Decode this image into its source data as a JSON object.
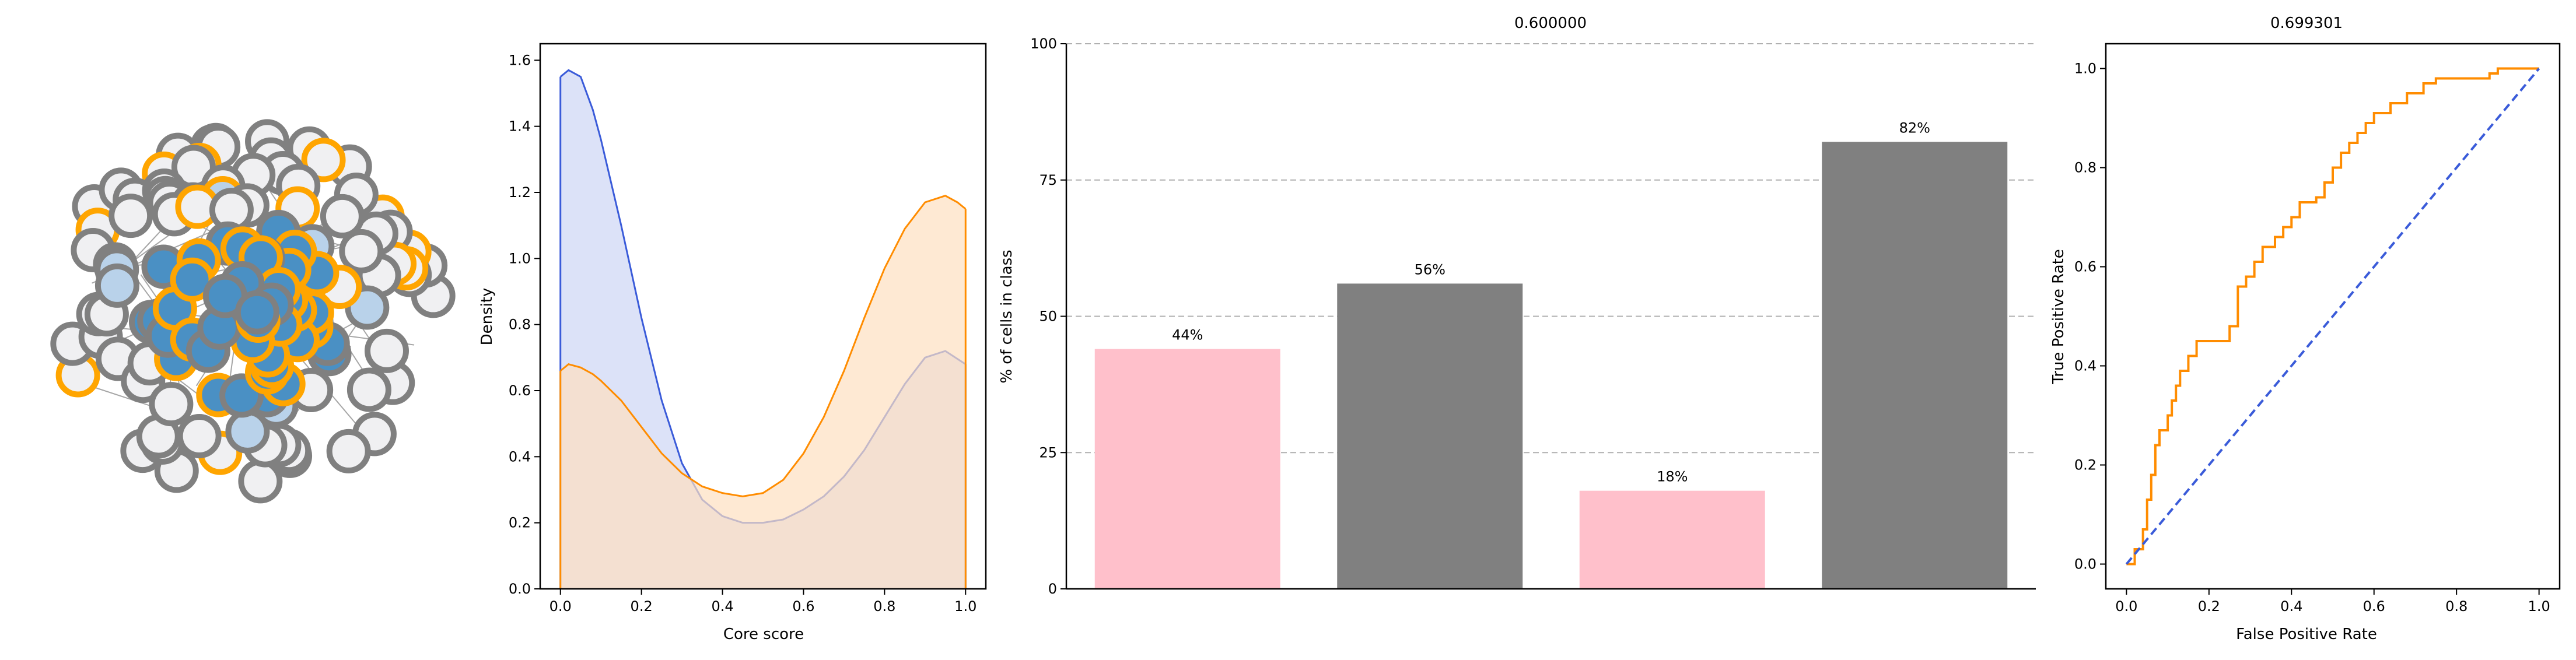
{
  "chart_data": [
    {
      "type": "network",
      "colors": {
        "core": "#4a90c4",
        "core_light": "#b9d2ea",
        "periphery": "#f0f0f2",
        "core_ring": "#ffa500",
        "ring": "#808080",
        "edge": "#a6a6a6"
      }
    },
    {
      "type": "area",
      "title": "",
      "xlabel": "Core score",
      "ylabel": "Density",
      "xlim": [
        -0.05,
        1.05
      ],
      "ylim": [
        0,
        1.65
      ],
      "xticks": [
        "0.0",
        "0.2",
        "0.4",
        "0.6",
        "0.8",
        "1.0"
      ],
      "yticks": [
        "0.0",
        "0.2",
        "0.4",
        "0.6",
        "0.8",
        "1.0",
        "1.2",
        "1.4",
        "1.6"
      ],
      "series": [
        {
          "color": "#3a5bd9",
          "fill": "#cdd6f5",
          "x": [
            0.0,
            0.02,
            0.05,
            0.08,
            0.1,
            0.15,
            0.2,
            0.25,
            0.3,
            0.35,
            0.4,
            0.45,
            0.5,
            0.55,
            0.6,
            0.65,
            0.7,
            0.75,
            0.8,
            0.85,
            0.9,
            0.95,
            1.0
          ],
          "y": [
            1.55,
            1.57,
            1.55,
            1.45,
            1.36,
            1.1,
            0.82,
            0.57,
            0.38,
            0.27,
            0.22,
            0.2,
            0.2,
            0.21,
            0.24,
            0.28,
            0.34,
            0.42,
            0.52,
            0.62,
            0.7,
            0.72,
            0.68
          ]
        },
        {
          "color": "#ff8c00",
          "fill": "#fde0c0",
          "x": [
            0.0,
            0.02,
            0.05,
            0.08,
            0.1,
            0.15,
            0.2,
            0.25,
            0.3,
            0.35,
            0.4,
            0.45,
            0.5,
            0.55,
            0.6,
            0.65,
            0.7,
            0.75,
            0.8,
            0.85,
            0.9,
            0.95,
            0.98,
            1.0
          ],
          "y": [
            0.66,
            0.68,
            0.67,
            0.65,
            0.63,
            0.57,
            0.49,
            0.41,
            0.35,
            0.31,
            0.29,
            0.28,
            0.29,
            0.33,
            0.41,
            0.52,
            0.66,
            0.82,
            0.97,
            1.09,
            1.17,
            1.19,
            1.17,
            1.15
          ]
        }
      ]
    },
    {
      "type": "bar",
      "title": "0.600000",
      "ylabel": "% of cells in class",
      "ylim": [
        0,
        100
      ],
      "yticks": [
        "0",
        "25",
        "50",
        "75",
        "100"
      ],
      "grid": true,
      "values": [
        44,
        56,
        18,
        82
      ],
      "labels": [
        "44%",
        "56%",
        "18%",
        "82%"
      ],
      "colors": [
        "#ffc0cb",
        "#808080",
        "#ffc0cb",
        "#808080"
      ]
    },
    {
      "type": "line",
      "title": "0.699301",
      "xlabel": "False Positive Rate",
      "ylabel": "True Positive Rate",
      "xlim": [
        -0.05,
        1.05
      ],
      "ylim": [
        -0.05,
        1.05
      ],
      "xticks": [
        "0.0",
        "0.2",
        "0.4",
        "0.6",
        "0.8",
        "1.0"
      ],
      "yticks": [
        "0.0",
        "0.2",
        "0.4",
        "0.6",
        "0.8",
        "1.0"
      ],
      "series": [
        {
          "color": "#ff8c00",
          "x": [
            0.0,
            0.02,
            0.02,
            0.04,
            0.04,
            0.05,
            0.05,
            0.06,
            0.06,
            0.07,
            0.07,
            0.08,
            0.08,
            0.1,
            0.1,
            0.11,
            0.11,
            0.12,
            0.12,
            0.13,
            0.13,
            0.15,
            0.15,
            0.17,
            0.17,
            0.19,
            0.19,
            0.25,
            0.25,
            0.27,
            0.27,
            0.29,
            0.29,
            0.31,
            0.31,
            0.33,
            0.33,
            0.36,
            0.36,
            0.38,
            0.38,
            0.4,
            0.4,
            0.42,
            0.42,
            0.46,
            0.46,
            0.48,
            0.48,
            0.5,
            0.5,
            0.52,
            0.52,
            0.54,
            0.54,
            0.56,
            0.56,
            0.58,
            0.58,
            0.6,
            0.6,
            0.64,
            0.64,
            0.68,
            0.68,
            0.72,
            0.72,
            0.75,
            0.75,
            0.78,
            0.78,
            0.88,
            0.88,
            0.9,
            0.9,
            1.0
          ],
          "y": [
            0.0,
            0.0,
            0.03,
            0.03,
            0.07,
            0.07,
            0.13,
            0.13,
            0.18,
            0.18,
            0.24,
            0.24,
            0.27,
            0.27,
            0.3,
            0.3,
            0.33,
            0.33,
            0.36,
            0.36,
            0.39,
            0.39,
            0.42,
            0.42,
            0.45,
            0.45,
            0.45,
            0.45,
            0.48,
            0.48,
            0.56,
            0.56,
            0.58,
            0.58,
            0.61,
            0.61,
            0.64,
            0.64,
            0.66,
            0.66,
            0.68,
            0.68,
            0.7,
            0.7,
            0.73,
            0.73,
            0.74,
            0.74,
            0.77,
            0.77,
            0.8,
            0.8,
            0.83,
            0.83,
            0.85,
            0.85,
            0.87,
            0.87,
            0.89,
            0.89,
            0.91,
            0.91,
            0.93,
            0.93,
            0.95,
            0.95,
            0.97,
            0.97,
            0.98,
            0.98,
            0.98,
            0.98,
            0.99,
            0.99,
            1.0,
            1.0
          ]
        },
        {
          "color": "#3a5bd9",
          "dashed": true,
          "x": [
            0.0,
            1.0
          ],
          "y": [
            0.0,
            1.0
          ]
        }
      ]
    }
  ]
}
